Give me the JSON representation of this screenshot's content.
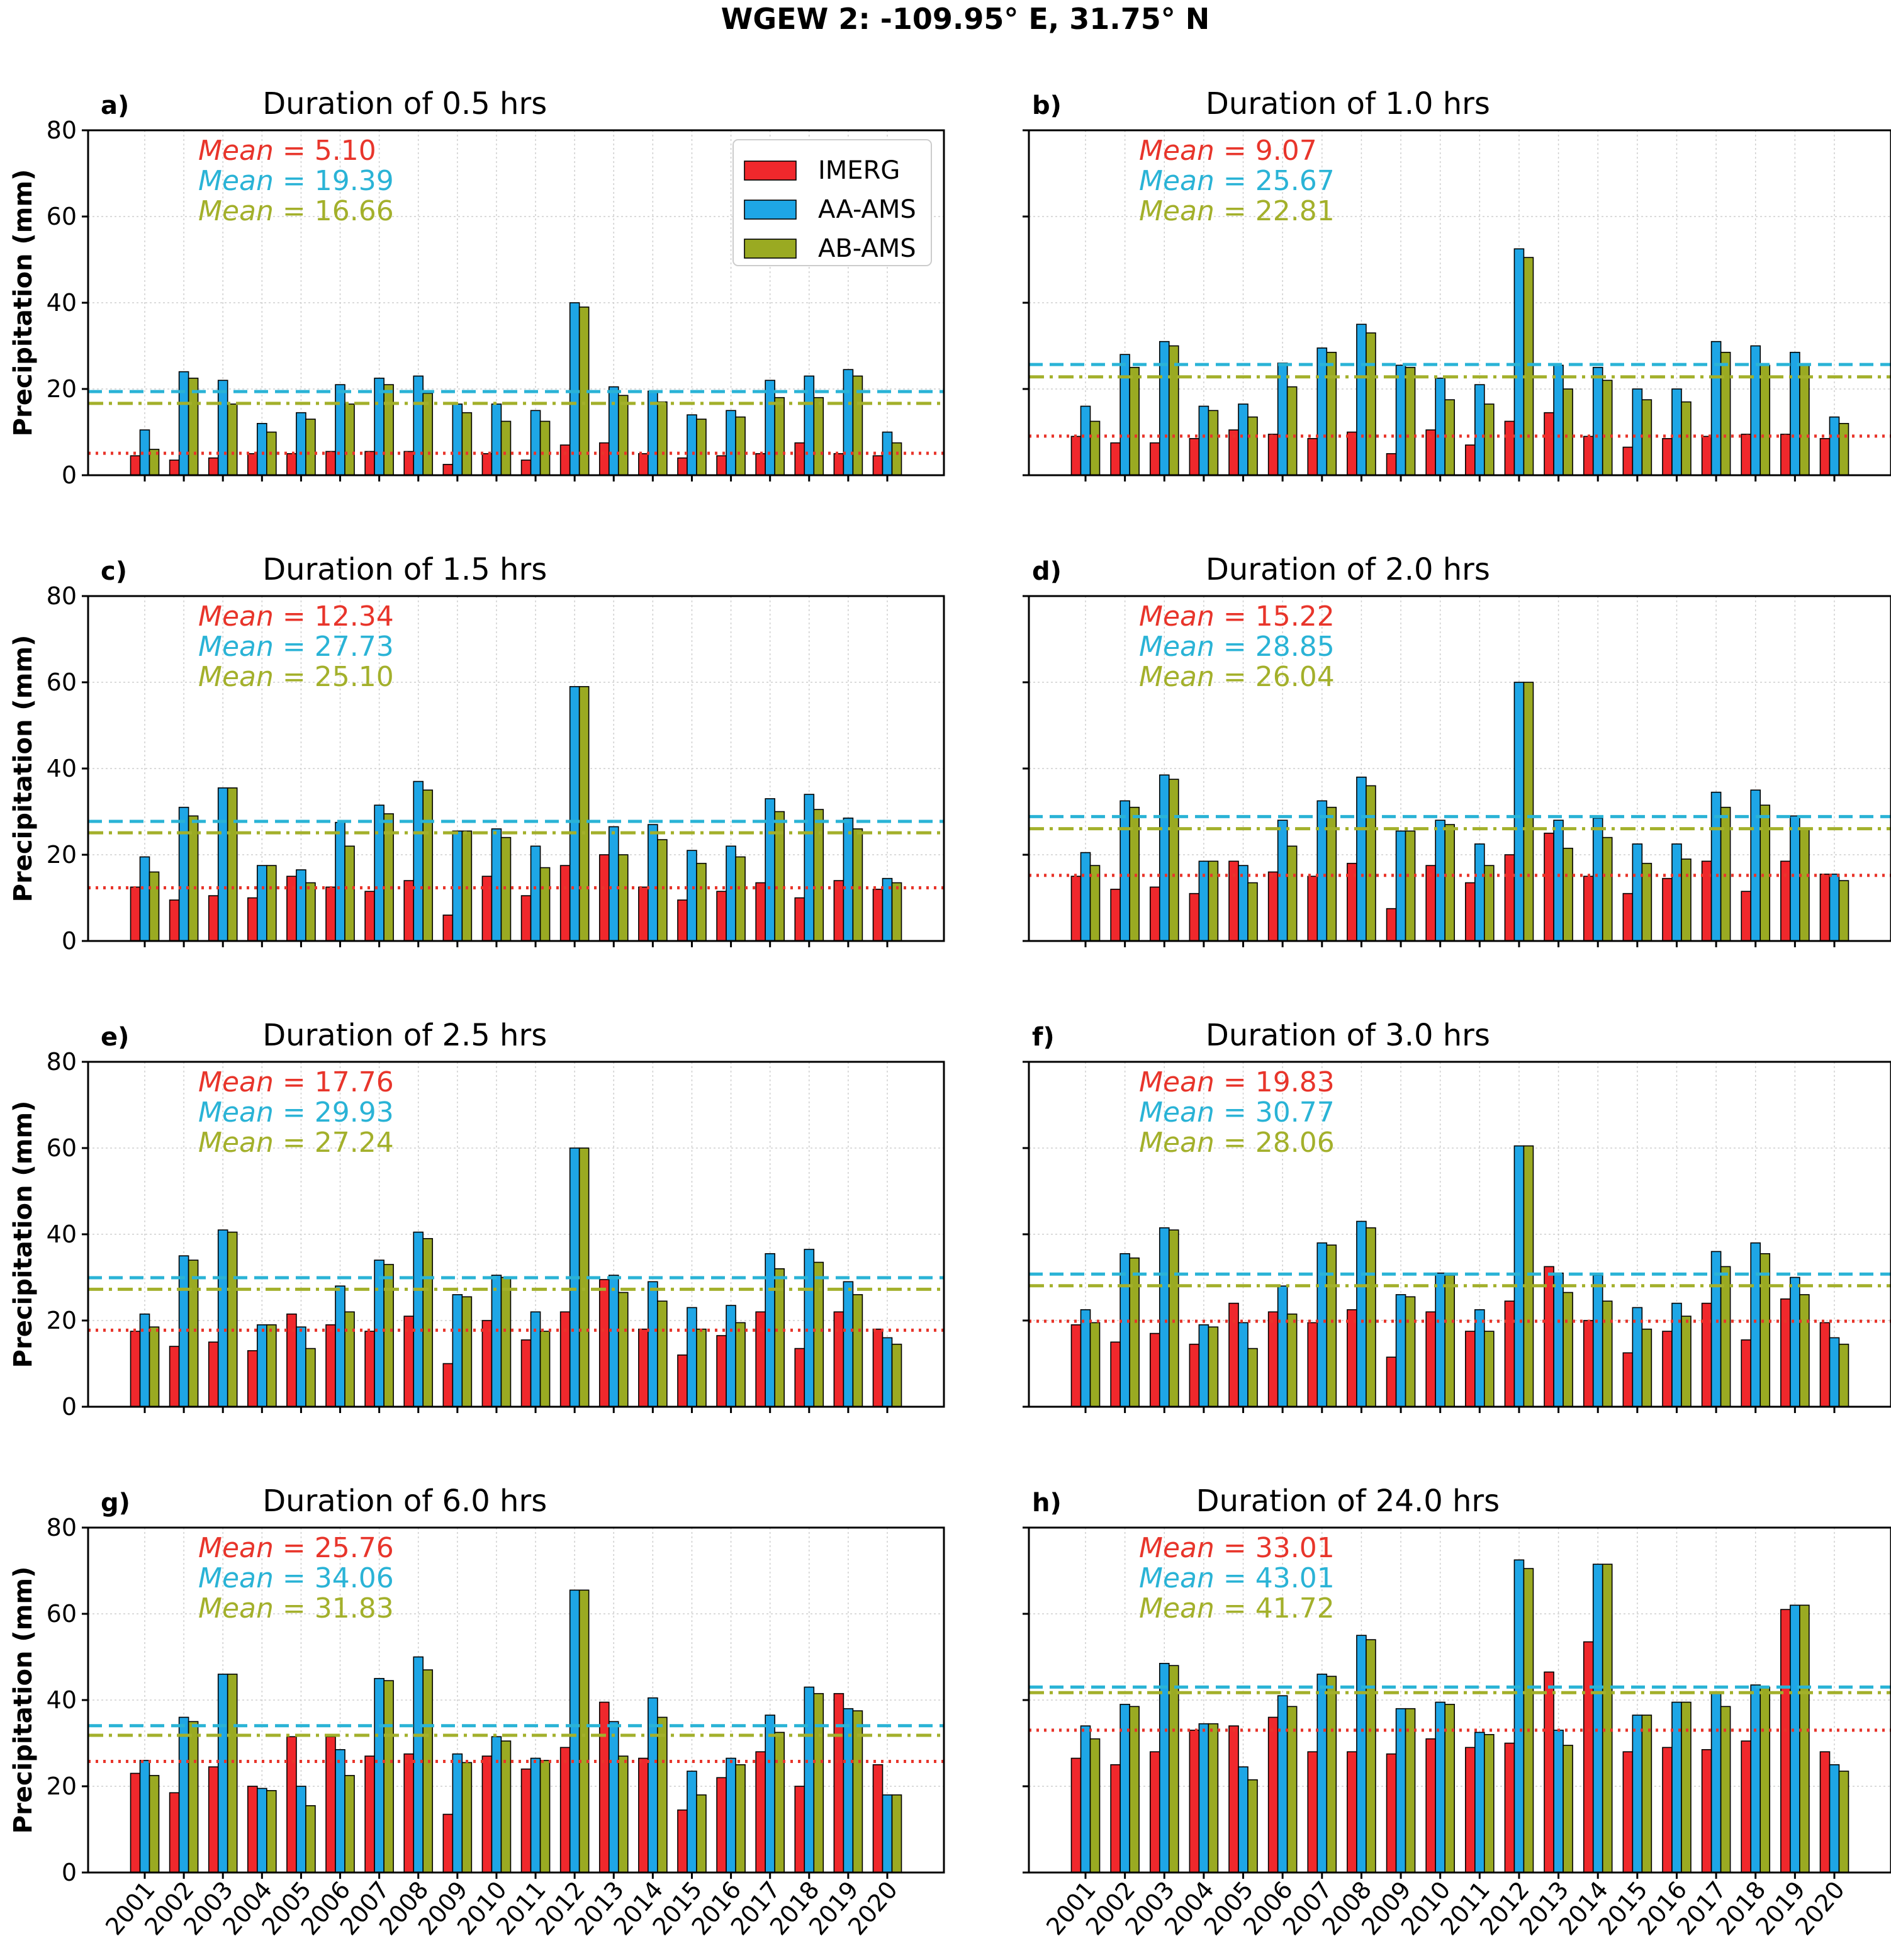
{
  "figure": {
    "suptitle": "WGEW 2: -109.95° E, 31.75° N",
    "ylabel": "Precipitation (mm)"
  },
  "colors": {
    "IMERG": "#f0282c",
    "AA-AMS": "#1ea6e6",
    "AB-AMS": "#9aaa22",
    "IMERG_text": "#e8352b",
    "AA-AMS_text": "#2ab3d6",
    "AB-AMS_text": "#a3b02b"
  },
  "legend": {
    "entries": [
      "IMERG",
      "AA-AMS",
      "AB-AMS"
    ],
    "placement": "top-right of panel a"
  },
  "mean_label": "Mean",
  "chart_data": [
    {
      "panel": "a)",
      "type": "bar",
      "title": "Duration of 0.5 hrs",
      "ylabel": "Precipitation (mm)",
      "ylim": [
        0,
        80
      ],
      "yticks": [
        0,
        20,
        40,
        60,
        80
      ],
      "grid": true,
      "categories": [
        "2001",
        "2002",
        "2003",
        "2004",
        "2005",
        "2006",
        "2007",
        "2008",
        "2009",
        "2010",
        "2011",
        "2012",
        "2013",
        "2014",
        "2015",
        "2016",
        "2017",
        "2018",
        "2019",
        "2020"
      ],
      "series": [
        {
          "name": "IMERG",
          "mean": 5.1,
          "mean_line": "dotted",
          "values": [
            4.5,
            3.5,
            4.0,
            5.0,
            5.0,
            5.5,
            5.5,
            5.5,
            2.5,
            5.0,
            3.5,
            7.0,
            7.5,
            5.0,
            4.0,
            4.5,
            5.0,
            7.5,
            5.0,
            4.5
          ]
        },
        {
          "name": "AA-AMS",
          "mean": 19.39,
          "mean_line": "dashed",
          "values": [
            10.5,
            24.0,
            22.0,
            12.0,
            14.5,
            21.0,
            22.5,
            23.0,
            16.5,
            16.5,
            15.0,
            40.0,
            20.5,
            19.5,
            14.0,
            15.0,
            22.0,
            23.0,
            24.5,
            10.0
          ]
        },
        {
          "name": "AB-AMS",
          "mean": 16.66,
          "mean_line": "dashdot",
          "values": [
            6.0,
            22.5,
            16.5,
            10.0,
            13.0,
            16.5,
            21.0,
            19.0,
            14.5,
            12.5,
            12.5,
            39.0,
            18.5,
            17.0,
            13.0,
            13.5,
            18.0,
            18.0,
            23.0,
            7.5
          ]
        }
      ]
    },
    {
      "panel": "b)",
      "type": "bar",
      "title": "Duration of 1.0 hrs",
      "ylim": [
        0,
        80
      ],
      "yticks": [
        0,
        20,
        40,
        60,
        80
      ],
      "grid": true,
      "categories": [
        "2001",
        "2002",
        "2003",
        "2004",
        "2005",
        "2006",
        "2007",
        "2008",
        "2009",
        "2010",
        "2011",
        "2012",
        "2013",
        "2014",
        "2015",
        "2016",
        "2017",
        "2018",
        "2019",
        "2020"
      ],
      "series": [
        {
          "name": "IMERG",
          "mean": 9.07,
          "mean_line": "dotted",
          "values": [
            9.0,
            7.5,
            7.5,
            8.5,
            10.5,
            9.5,
            8.5,
            10.0,
            5.0,
            10.5,
            7.0,
            12.5,
            14.5,
            9.0,
            6.5,
            8.5,
            9.0,
            9.5,
            9.5,
            8.5
          ]
        },
        {
          "name": "AA-AMS",
          "mean": 25.67,
          "mean_line": "dashed",
          "values": [
            16.0,
            28.0,
            31.0,
            16.0,
            16.5,
            26.0,
            29.5,
            35.0,
            25.5,
            22.5,
            21.0,
            52.5,
            25.5,
            25.0,
            20.0,
            20.0,
            31.0,
            30.0,
            28.5,
            13.5
          ]
        },
        {
          "name": "AB-AMS",
          "mean": 22.81,
          "mean_line": "dashdot",
          "values": [
            12.5,
            25.0,
            30.0,
            15.0,
            13.5,
            20.5,
            28.5,
            33.0,
            25.0,
            17.5,
            16.5,
            50.5,
            20.0,
            22.0,
            17.5,
            17.0,
            28.5,
            25.5,
            25.5,
            12.0
          ]
        }
      ]
    },
    {
      "panel": "c)",
      "type": "bar",
      "title": "Duration of 1.5 hrs",
      "ylim": [
        0,
        80
      ],
      "yticks": [
        0,
        20,
        40,
        60,
        80
      ],
      "grid": true,
      "categories": [
        "2001",
        "2002",
        "2003",
        "2004",
        "2005",
        "2006",
        "2007",
        "2008",
        "2009",
        "2010",
        "2011",
        "2012",
        "2013",
        "2014",
        "2015",
        "2016",
        "2017",
        "2018",
        "2019",
        "2020"
      ],
      "series": [
        {
          "name": "IMERG",
          "mean": 12.34,
          "mean_line": "dotted",
          "values": [
            12.5,
            9.5,
            10.5,
            10.0,
            15.0,
            12.5,
            11.5,
            14.0,
            6.0,
            15.0,
            10.5,
            17.5,
            20.0,
            12.5,
            9.5,
            11.5,
            13.5,
            10.0,
            14.0,
            12.0
          ]
        },
        {
          "name": "AA-AMS",
          "mean": 27.73,
          "mean_line": "dashed",
          "values": [
            19.5,
            31.0,
            35.5,
            17.5,
            16.5,
            27.5,
            31.5,
            37.0,
            25.5,
            26.0,
            22.0,
            59.0,
            26.5,
            27.0,
            21.0,
            22.0,
            33.0,
            34.0,
            28.5,
            14.5
          ]
        },
        {
          "name": "AB-AMS",
          "mean": 25.1,
          "mean_line": "dashdot",
          "values": [
            16.0,
            29.0,
            35.5,
            17.5,
            13.5,
            22.0,
            29.5,
            35.0,
            25.5,
            24.0,
            17.0,
            59.0,
            20.0,
            23.5,
            18.0,
            19.5,
            30.0,
            30.5,
            26.0,
            13.5
          ]
        }
      ]
    },
    {
      "panel": "d)",
      "type": "bar",
      "title": "Duration of 2.0 hrs",
      "ylim": [
        0,
        80
      ],
      "yticks": [
        0,
        20,
        40,
        60,
        80
      ],
      "grid": true,
      "categories": [
        "2001",
        "2002",
        "2003",
        "2004",
        "2005",
        "2006",
        "2007",
        "2008",
        "2009",
        "2010",
        "2011",
        "2012",
        "2013",
        "2014",
        "2015",
        "2016",
        "2017",
        "2018",
        "2019",
        "2020"
      ],
      "series": [
        {
          "name": "IMERG",
          "mean": 15.22,
          "mean_line": "dotted",
          "values": [
            15.0,
            12.0,
            12.5,
            11.0,
            18.5,
            16.0,
            15.0,
            18.0,
            7.5,
            17.5,
            13.5,
            20.0,
            25.0,
            15.0,
            11.0,
            14.5,
            18.5,
            11.5,
            18.5,
            15.5
          ]
        },
        {
          "name": "AA-AMS",
          "mean": 28.85,
          "mean_line": "dashed",
          "values": [
            20.5,
            32.5,
            38.5,
            18.5,
            17.5,
            28.0,
            32.5,
            38.0,
            25.5,
            28.0,
            22.5,
            60.0,
            28.0,
            28.5,
            22.5,
            22.5,
            34.5,
            35.0,
            29.0,
            15.5
          ]
        },
        {
          "name": "AB-AMS",
          "mean": 26.04,
          "mean_line": "dashdot",
          "values": [
            17.5,
            31.0,
            37.5,
            18.5,
            13.5,
            22.0,
            31.0,
            36.0,
            25.5,
            27.0,
            17.5,
            60.0,
            21.5,
            24.0,
            18.0,
            19.0,
            31.0,
            31.5,
            26.0,
            14.0
          ]
        }
      ]
    },
    {
      "panel": "e)",
      "type": "bar",
      "title": "Duration of 2.5 hrs",
      "ylim": [
        0,
        80
      ],
      "yticks": [
        0,
        20,
        40,
        60,
        80
      ],
      "grid": true,
      "categories": [
        "2001",
        "2002",
        "2003",
        "2004",
        "2005",
        "2006",
        "2007",
        "2008",
        "2009",
        "2010",
        "2011",
        "2012",
        "2013",
        "2014",
        "2015",
        "2016",
        "2017",
        "2018",
        "2019",
        "2020"
      ],
      "series": [
        {
          "name": "IMERG",
          "mean": 17.76,
          "mean_line": "dotted",
          "values": [
            17.5,
            14.0,
            15.0,
            13.0,
            21.5,
            19.0,
            17.5,
            21.0,
            10.0,
            20.0,
            15.5,
            22.0,
            29.5,
            18.0,
            12.0,
            16.5,
            22.0,
            13.5,
            22.0,
            18.0
          ]
        },
        {
          "name": "AA-AMS",
          "mean": 29.93,
          "mean_line": "dashed",
          "values": [
            21.5,
            35.0,
            41.0,
            19.0,
            18.5,
            28.0,
            34.0,
            40.5,
            26.0,
            30.5,
            22.0,
            60.0,
            30.5,
            29.0,
            23.0,
            23.5,
            35.5,
            36.5,
            29.0,
            16.0
          ]
        },
        {
          "name": "AB-AMS",
          "mean": 27.24,
          "mean_line": "dashdot",
          "values": [
            18.5,
            34.0,
            40.5,
            19.0,
            13.5,
            22.0,
            33.0,
            39.0,
            25.5,
            30.0,
            17.5,
            60.0,
            26.5,
            24.5,
            18.0,
            19.5,
            32.0,
            33.5,
            26.0,
            14.5
          ]
        }
      ]
    },
    {
      "panel": "f)",
      "type": "bar",
      "title": "Duration of 3.0 hrs",
      "ylim": [
        0,
        80
      ],
      "yticks": [
        0,
        20,
        40,
        60,
        80
      ],
      "grid": true,
      "categories": [
        "2001",
        "2002",
        "2003",
        "2004",
        "2005",
        "2006",
        "2007",
        "2008",
        "2009",
        "2010",
        "2011",
        "2012",
        "2013",
        "2014",
        "2015",
        "2016",
        "2017",
        "2018",
        "2019",
        "2020"
      ],
      "series": [
        {
          "name": "IMERG",
          "mean": 19.83,
          "mean_line": "dotted",
          "values": [
            19.0,
            15.0,
            17.0,
            14.5,
            24.0,
            22.0,
            19.5,
            22.5,
            11.5,
            22.0,
            17.5,
            24.5,
            32.5,
            20.0,
            12.5,
            17.5,
            24.0,
            15.5,
            25.0,
            19.5
          ]
        },
        {
          "name": "AA-AMS",
          "mean": 30.77,
          "mean_line": "dashed",
          "values": [
            22.5,
            35.5,
            41.5,
            19.0,
            19.5,
            28.0,
            38.0,
            43.0,
            26.0,
            31.0,
            22.5,
            60.5,
            31.0,
            30.5,
            23.0,
            24.0,
            36.0,
            38.0,
            30.0,
            16.0
          ]
        },
        {
          "name": "AB-AMS",
          "mean": 28.06,
          "mean_line": "dashdot",
          "values": [
            19.5,
            34.5,
            41.0,
            18.5,
            13.5,
            21.5,
            37.5,
            41.5,
            25.5,
            30.5,
            17.5,
            60.5,
            26.5,
            24.5,
            18.0,
            21.0,
            32.5,
            35.5,
            26.0,
            14.5
          ]
        }
      ]
    },
    {
      "panel": "g)",
      "type": "bar",
      "title": "Duration of 6.0 hrs",
      "ylim": [
        0,
        80
      ],
      "yticks": [
        0,
        20,
        40,
        60,
        80
      ],
      "grid": true,
      "categories": [
        "2001",
        "2002",
        "2003",
        "2004",
        "2005",
        "2006",
        "2007",
        "2008",
        "2009",
        "2010",
        "2011",
        "2012",
        "2013",
        "2014",
        "2015",
        "2016",
        "2017",
        "2018",
        "2019",
        "2020"
      ],
      "series": [
        {
          "name": "IMERG",
          "mean": 25.76,
          "mean_line": "dotted",
          "values": [
            23.0,
            18.5,
            24.5,
            20.0,
            31.5,
            31.5,
            27.0,
            27.5,
            13.5,
            27.0,
            24.0,
            29.0,
            39.5,
            26.5,
            14.5,
            22.0,
            28.0,
            20.0,
            41.5,
            25.0
          ]
        },
        {
          "name": "AA-AMS",
          "mean": 34.06,
          "mean_line": "dashed",
          "values": [
            26.0,
            36.0,
            46.0,
            19.5,
            20.0,
            28.5,
            45.0,
            50.0,
            27.5,
            31.5,
            26.5,
            65.5,
            35.0,
            40.5,
            23.5,
            26.5,
            36.5,
            43.0,
            38.0,
            18.0
          ]
        },
        {
          "name": "AB-AMS",
          "mean": 31.83,
          "mean_line": "dashdot",
          "values": [
            22.5,
            35.0,
            46.0,
            19.0,
            15.5,
            22.5,
            44.5,
            47.0,
            25.5,
            30.5,
            26.0,
            65.5,
            27.0,
            36.0,
            18.0,
            25.0,
            32.5,
            41.5,
            37.5,
            18.0
          ]
        }
      ]
    },
    {
      "panel": "h)",
      "type": "bar",
      "title": "Duration of 24.0 hrs",
      "ylim": [
        0,
        80
      ],
      "yticks": [
        0,
        20,
        40,
        60,
        80
      ],
      "grid": true,
      "categories": [
        "2001",
        "2002",
        "2003",
        "2004",
        "2005",
        "2006",
        "2007",
        "2008",
        "2009",
        "2010",
        "2011",
        "2012",
        "2013",
        "2014",
        "2015",
        "2016",
        "2017",
        "2018",
        "2019",
        "2020"
      ],
      "series": [
        {
          "name": "IMERG",
          "mean": 33.01,
          "mean_line": "dotted",
          "values": [
            26.5,
            25.0,
            28.0,
            33.0,
            34.0,
            36.0,
            28.0,
            28.0,
            27.5,
            31.0,
            29.0,
            30.0,
            46.5,
            53.5,
            28.0,
            29.0,
            28.5,
            30.5,
            61.0,
            28.0
          ]
        },
        {
          "name": "AA-AMS",
          "mean": 43.01,
          "mean_line": "dashed",
          "values": [
            34.0,
            39.0,
            48.5,
            34.5,
            24.5,
            41.0,
            46.0,
            55.0,
            38.0,
            39.5,
            32.5,
            72.5,
            33.0,
            71.5,
            36.5,
            39.5,
            41.5,
            43.5,
            62.0,
            25.0
          ]
        },
        {
          "name": "AB-AMS",
          "mean": 41.72,
          "mean_line": "dashdot",
          "values": [
            31.0,
            38.5,
            48.0,
            34.5,
            21.5,
            38.5,
            45.5,
            54.0,
            38.0,
            39.0,
            32.0,
            70.5,
            29.5,
            71.5,
            36.5,
            39.5,
            38.5,
            43.0,
            62.0,
            23.5
          ]
        }
      ]
    }
  ]
}
